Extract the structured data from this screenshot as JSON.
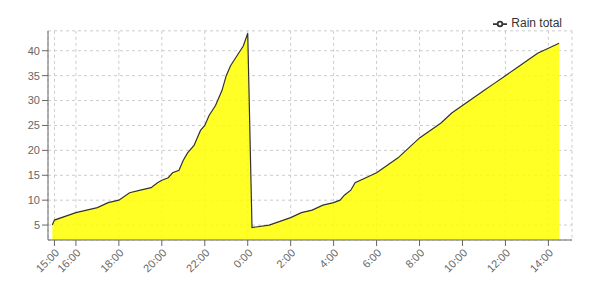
{
  "chart_data": {
    "type": "area",
    "x": [
      14.9,
      15.0,
      16.0,
      16.5,
      17.0,
      17.5,
      18.0,
      18.5,
      19.0,
      19.5,
      19.8,
      20.0,
      20.3,
      20.5,
      20.8,
      21.0,
      21.2,
      21.5,
      21.8,
      22.0,
      22.2,
      22.5,
      22.8,
      23.0,
      23.2,
      23.5,
      23.8,
      24.0,
      24.2,
      25.0,
      26.0,
      26.5,
      27.0,
      27.5,
      28.0,
      28.3,
      28.5,
      28.8,
      29.0,
      29.5,
      30.0,
      30.5,
      31.0,
      31.5,
      32.0,
      32.5,
      33.0,
      33.5,
      34.0,
      34.5,
      35.0,
      35.5,
      36.0,
      36.5,
      37.0,
      37.5,
      38.0,
      38.5
    ],
    "series": [
      {
        "name": "Rain total",
        "color": "#ffff00",
        "values": [
          5.0,
          6.0,
          7.5,
          8.0,
          8.5,
          9.5,
          10.0,
          11.5,
          12.0,
          12.5,
          13.5,
          14.0,
          14.5,
          15.5,
          16.0,
          18.0,
          19.5,
          21.0,
          24.0,
          25.0,
          27.0,
          29.0,
          32.0,
          35.0,
          37.0,
          39.0,
          41.0,
          43.5,
          4.5,
          5.0,
          6.5,
          7.5,
          8.0,
          9.0,
          9.5,
          10.0,
          11.0,
          12.0,
          13.5,
          14.5,
          15.5,
          17.0,
          18.5,
          20.5,
          22.5,
          24.0,
          25.5,
          27.5,
          29.0,
          30.5,
          32.0,
          33.5,
          35.0,
          36.5,
          38.0,
          39.5,
          40.5,
          41.5
        ]
      }
    ],
    "xlim": [
      14.7,
      39.1
    ],
    "xticks": [
      {
        "value": 15,
        "label": "15:00"
      },
      {
        "value": 16,
        "label": "16:00"
      },
      {
        "value": 18,
        "label": "18:00"
      },
      {
        "value": 20,
        "label": "20:00"
      },
      {
        "value": 22,
        "label": "22:00"
      },
      {
        "value": 24,
        "label": "0:00"
      },
      {
        "value": 26,
        "label": "2:00"
      },
      {
        "value": 28,
        "label": "4:00"
      },
      {
        "value": 30,
        "label": "6:00"
      },
      {
        "value": 32,
        "label": "8:00"
      },
      {
        "value": 34,
        "label": "10:00"
      },
      {
        "value": 36,
        "label": "12:00"
      },
      {
        "value": 38,
        "label": "14:00"
      }
    ],
    "ylim": [
      2,
      44
    ],
    "yticks": [
      5,
      10,
      15,
      20,
      25,
      30,
      35,
      40
    ],
    "grid": true,
    "legend": "upper right"
  }
}
